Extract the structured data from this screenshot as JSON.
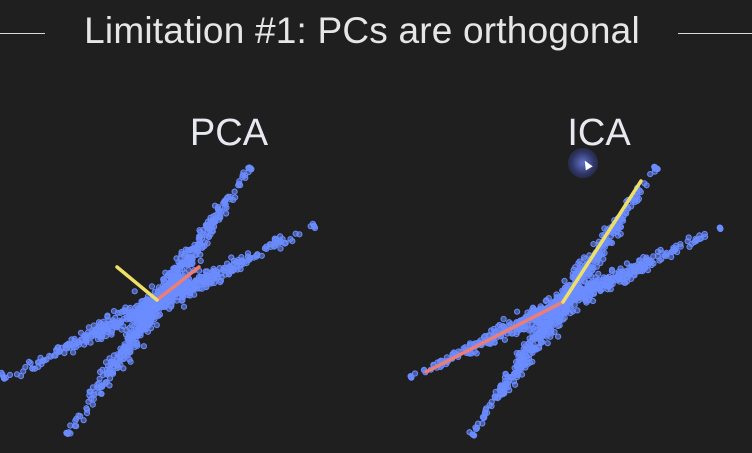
{
  "slide": {
    "title": "Limitation #1: PCs are orthogonal"
  },
  "panels": [
    {
      "label": "PCA"
    },
    {
      "label": "ICA"
    }
  ],
  "colors": {
    "background": "#1f1f1f",
    "points": "#6b8cff",
    "component_1": "#ee7d75",
    "component_2": "#eee066",
    "text": "#e6e6e6"
  },
  "icons": {
    "cursor": "mouse-pointer-icon"
  }
}
